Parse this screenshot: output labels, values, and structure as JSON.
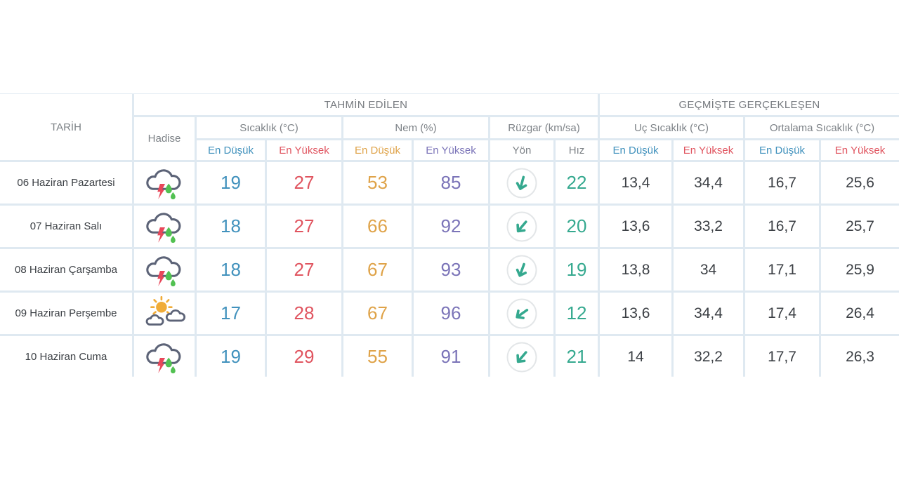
{
  "table": {
    "date_header": "TARİH",
    "sections": {
      "predicted": "TAHMİN EDİLEN",
      "past": "GEÇMİŞTE GERÇEKLEŞEN"
    },
    "groups": {
      "event": "Hadise",
      "temperature": "Sıcaklık (°C)",
      "humidity": "Nem (%)",
      "wind": "Rüzgar (km/sa)",
      "extreme_temp": "Uç Sıcaklık (°C)",
      "average_temp": "Ortalama Sıcaklık (°C)"
    },
    "subheaders": {
      "min": "En Düşük",
      "max": "En Yüksek",
      "direction": "Yön",
      "speed": "Hız"
    },
    "rows": [
      {
        "date": "06 Haziran Pazartesi",
        "icon": "storm",
        "temp_min": "19",
        "temp_max": "27",
        "hum_min": "53",
        "hum_max": "85",
        "wind_dir_deg": 15,
        "wind_speed": "22",
        "ext_min": "13,4",
        "ext_max": "34,4",
        "avg_min": "16,7",
        "avg_max": "25,6"
      },
      {
        "date": "07 Haziran Salı",
        "icon": "storm",
        "temp_min": "18",
        "temp_max": "27",
        "hum_min": "66",
        "hum_max": "92",
        "wind_dir_deg": 40,
        "wind_speed": "20",
        "ext_min": "13,6",
        "ext_max": "33,2",
        "avg_min": "16,7",
        "avg_max": "25,7"
      },
      {
        "date": "08 Haziran Çarşamba",
        "icon": "storm",
        "temp_min": "18",
        "temp_max": "27",
        "hum_min": "67",
        "hum_max": "93",
        "wind_dir_deg": 20,
        "wind_speed": "19",
        "ext_min": "13,8",
        "ext_max": "34",
        "avg_min": "17,1",
        "avg_max": "25,9"
      },
      {
        "date": "09 Haziran Perşembe",
        "icon": "sun-clouds",
        "temp_min": "17",
        "temp_max": "28",
        "hum_min": "67",
        "hum_max": "96",
        "wind_dir_deg": 55,
        "wind_speed": "12",
        "ext_min": "13,6",
        "ext_max": "34,4",
        "avg_min": "17,4",
        "avg_max": "26,4"
      },
      {
        "date": "10 Haziran Cuma",
        "icon": "storm",
        "temp_min": "19",
        "temp_max": "29",
        "hum_min": "55",
        "hum_max": "91",
        "wind_dir_deg": 40,
        "wind_speed": "21",
        "ext_min": "14",
        "ext_max": "32,2",
        "avg_min": "17,7",
        "avg_max": "26,3"
      }
    ],
    "colors": {
      "min_blue": "#4292bd",
      "max_red": "#e0545f",
      "humidity_min_orange": "#dfa349",
      "humidity_max_purple": "#7b74b8",
      "teal_accent": "#35a98f",
      "header_gray": "#7d8287",
      "text_dark": "#3c4045",
      "grid_line": "#dfe9f1",
      "icon_cloud": "#5c6377",
      "icon_bolt": "#e8475a",
      "icon_drop": "#52c152",
      "icon_sun": "#f0ac38",
      "icon_circle": "#e3e6e8"
    }
  }
}
